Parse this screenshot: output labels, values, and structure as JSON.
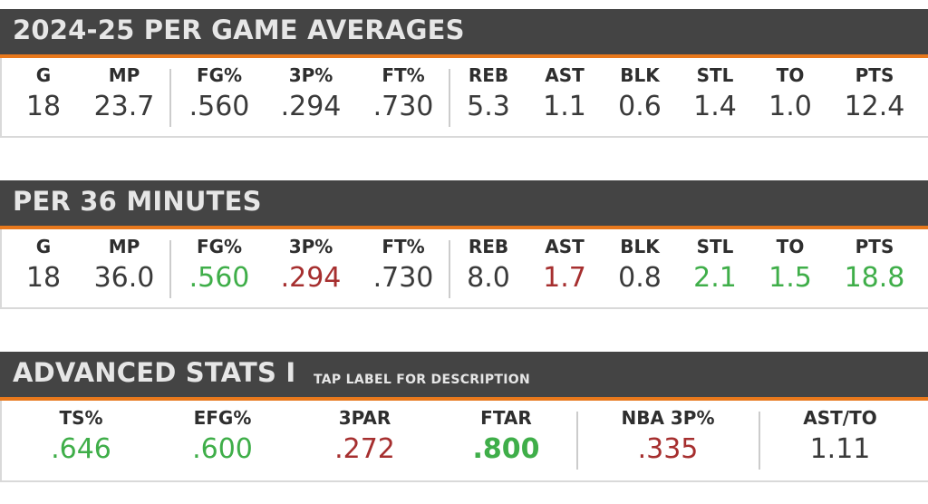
{
  "sections": {
    "per_game": {
      "title": "2024-25 PER GAME AVERAGES",
      "stats": [
        {
          "label": "G",
          "value": "18"
        },
        {
          "label": "MP",
          "value": "23.7"
        },
        {
          "label": "FG%",
          "value": ".560"
        },
        {
          "label": "3P%",
          "value": ".294"
        },
        {
          "label": "FT%",
          "value": ".730"
        },
        {
          "label": "REB",
          "value": "5.3"
        },
        {
          "label": "AST",
          "value": "1.1"
        },
        {
          "label": "BLK",
          "value": "0.6"
        },
        {
          "label": "STL",
          "value": "1.4"
        },
        {
          "label": "TO",
          "value": "1.0"
        },
        {
          "label": "PTS",
          "value": "12.4"
        }
      ]
    },
    "per_36": {
      "title": "PER 36 MINUTES",
      "stats": [
        {
          "label": "G",
          "value": "18",
          "tone": "neutral"
        },
        {
          "label": "MP",
          "value": "36.0",
          "tone": "neutral"
        },
        {
          "label": "FG%",
          "value": ".560",
          "tone": "good"
        },
        {
          "label": "3P%",
          "value": ".294",
          "tone": "bad"
        },
        {
          "label": "FT%",
          "value": ".730",
          "tone": "neutral"
        },
        {
          "label": "REB",
          "value": "8.0",
          "tone": "neutral"
        },
        {
          "label": "AST",
          "value": "1.7",
          "tone": "bad"
        },
        {
          "label": "BLK",
          "value": "0.8",
          "tone": "neutral"
        },
        {
          "label": "STL",
          "value": "2.1",
          "tone": "good"
        },
        {
          "label": "TO",
          "value": "1.5",
          "tone": "good"
        },
        {
          "label": "PTS",
          "value": "18.8",
          "tone": "good"
        }
      ]
    },
    "advanced": {
      "title": "ADVANCED STATS I",
      "subtitle": "TAP LABEL FOR DESCRIPTION",
      "stats": [
        {
          "label": "TS%",
          "value": ".646",
          "tone": "good"
        },
        {
          "label": "EFG%",
          "value": ".600",
          "tone": "good"
        },
        {
          "label": "3PAR",
          "value": ".272",
          "tone": "bad"
        },
        {
          "label": "FTAR",
          "value": ".800",
          "tone": "good-bold"
        },
        {
          "label": "NBA 3P%",
          "value": ".335",
          "tone": "bad"
        },
        {
          "label": "AST/TO",
          "value": "1.11",
          "tone": "neutral"
        }
      ]
    }
  },
  "colors": {
    "header_bg": "#444444",
    "accent": "#e8781c",
    "good": "#3fae49",
    "bad": "#a62f2f",
    "neutral": "#3a3a3a"
  }
}
